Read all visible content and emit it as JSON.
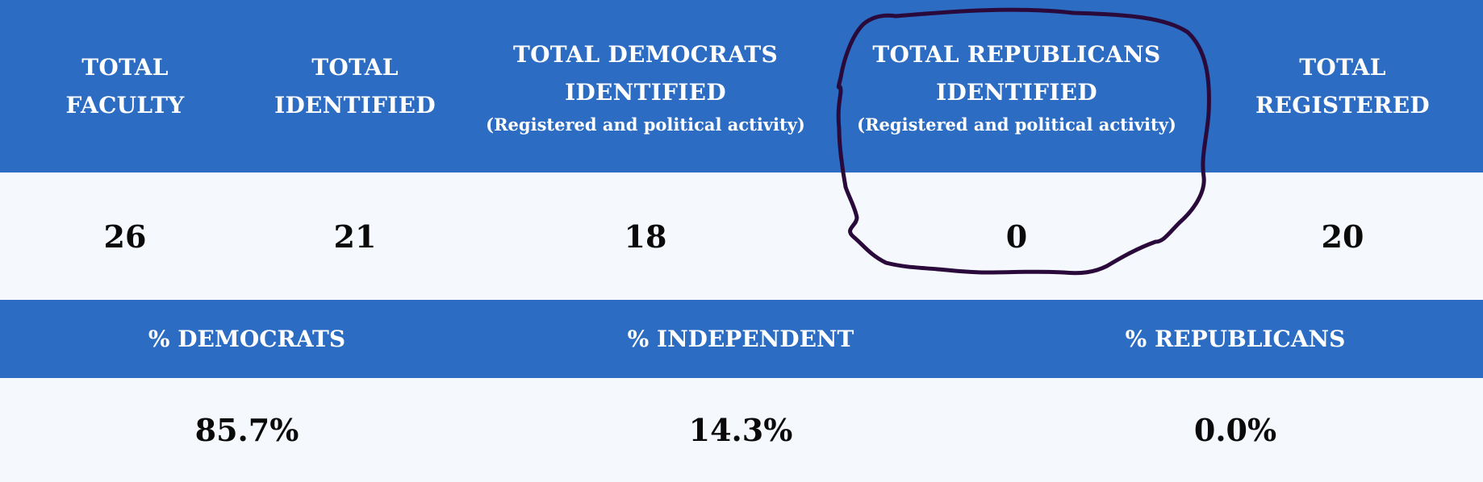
{
  "headers": [
    {
      "line1": "TOTAL",
      "line2": "FACULTY",
      "sub": ""
    },
    {
      "line1": "TOTAL",
      "line2": "IDENTIFIED",
      "sub": ""
    },
    {
      "line1": "TOTAL DEMOCRATS",
      "line2": "IDENTIFIED",
      "sub": "(Registered and political activity)"
    },
    {
      "line1": "TOTAL REPUBLICANS",
      "line2": "IDENTIFIED",
      "sub": "(Registered and political activity)"
    },
    {
      "line1": "TOTAL",
      "line2": "REGISTERED",
      "sub": ""
    }
  ],
  "values": [
    "26",
    "21",
    "18",
    "0",
    "20"
  ],
  "pct_headers": [
    "% DEMOCRATS",
    "% INDEPENDENT",
    "% REPUBLICANS"
  ],
  "pct_values": [
    "85.7%",
    "14.3%",
    "0.0%"
  ],
  "colors": {
    "header_bg": "#2c6cc3",
    "row_bg": "#f5f9fe",
    "annotation_stroke": "#2a0a3a"
  }
}
